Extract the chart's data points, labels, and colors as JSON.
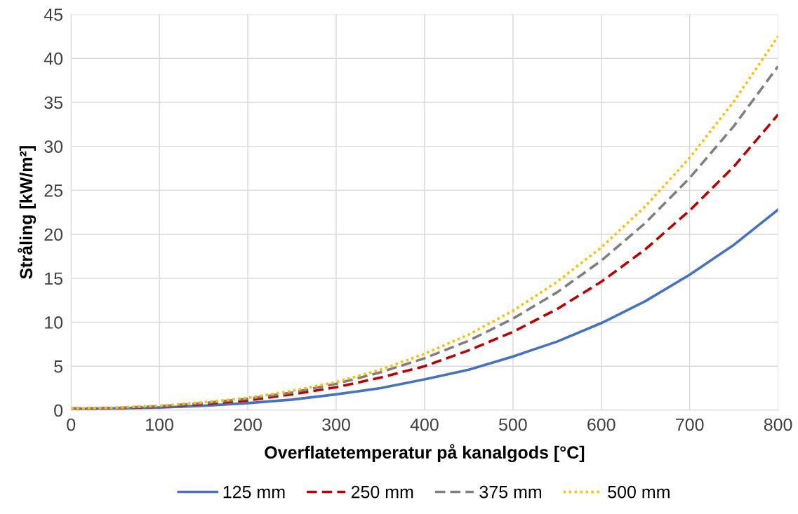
{
  "chart_data": {
    "type": "line",
    "xlabel": "Overflatetemperatur på kanalgods [°C]",
    "ylabel": "Stråling [kW/m²]",
    "x": [
      0,
      50,
      100,
      150,
      200,
      250,
      300,
      350,
      400,
      450,
      500,
      550,
      600,
      650,
      700,
      750,
      800
    ],
    "series": [
      {
        "name": "125 mm",
        "color": "#4472c4",
        "line_style": "solid",
        "values": [
          0.1,
          0.2,
          0.3,
          0.5,
          0.8,
          1.2,
          1.8,
          2.5,
          3.5,
          4.6,
          6.1,
          7.8,
          9.9,
          12.4,
          15.4,
          18.8,
          22.8
        ]
      },
      {
        "name": "250 mm",
        "color": "#c00000",
        "line_style": "dashed",
        "values": [
          0.15,
          0.2,
          0.4,
          0.7,
          1.1,
          1.8,
          2.6,
          3.7,
          5.0,
          6.8,
          8.9,
          11.5,
          14.6,
          18.3,
          22.7,
          27.7,
          33.6
        ]
      },
      {
        "name": "375 mm",
        "color": "#7f7f7f",
        "line_style": "dashed",
        "values": [
          0.2,
          0.25,
          0.45,
          0.8,
          1.3,
          2.0,
          3.0,
          4.3,
          5.9,
          7.9,
          10.4,
          13.4,
          17.0,
          21.3,
          26.4,
          32.3,
          39.1
        ]
      },
      {
        "name": "500 mm",
        "color": "#ffc000",
        "line_style": "dotted",
        "values": [
          0.2,
          0.3,
          0.5,
          0.9,
          1.4,
          2.2,
          3.2,
          4.6,
          6.4,
          8.6,
          11.3,
          14.6,
          18.5,
          23.2,
          28.7,
          35.1,
          42.5
        ]
      }
    ],
    "xlim": [
      0,
      800
    ],
    "xticks": [
      0,
      100,
      200,
      300,
      400,
      500,
      600,
      700,
      800
    ],
    "ylim": [
      0,
      45
    ],
    "yticks": [
      0,
      5,
      10,
      15,
      20,
      25,
      30,
      35,
      40,
      45
    ],
    "grid": true,
    "legend": "bottom",
    "marker": "none"
  }
}
